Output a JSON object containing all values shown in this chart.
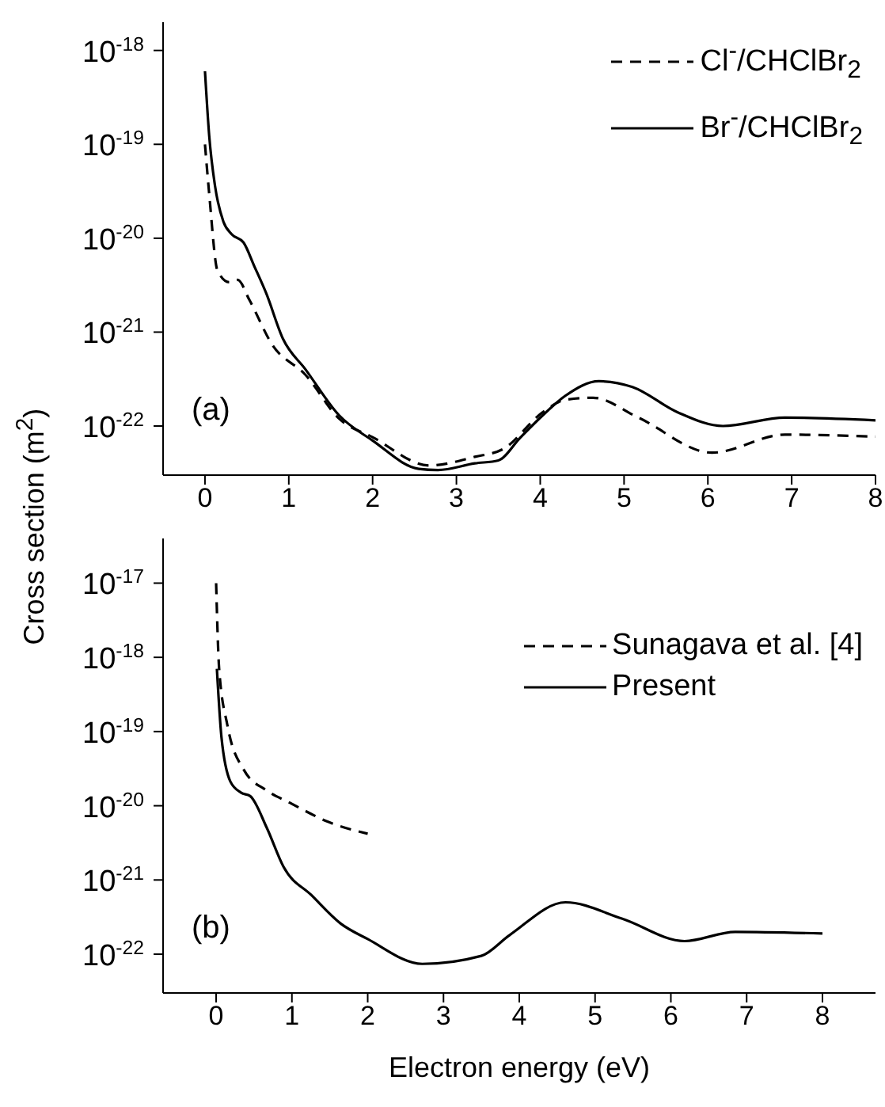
{
  "chart_data": [
    {
      "type": "line",
      "ylabel": "Cross section (m$^{2}$)",
      "log": "y",
      "legend": "top right",
      "annotations": [
        "(a)"
      ],
      "xlim": [
        -0.5,
        8
      ],
      "xticks": [
        0,
        1,
        2,
        3,
        4,
        5,
        6,
        7,
        8
      ],
      "ylim": [
        3e-23,
        2e-18
      ],
      "yticks": [
        {
          "value": 1e-22,
          "label": "10$^{-22}$"
        },
        {
          "value": 1e-21,
          "label": "10$^{-21}$"
        },
        {
          "value": 1e-20,
          "label": "10$^{-20}$"
        },
        {
          "value": 1e-19,
          "label": "10$^{-19}$"
        },
        {
          "value": 1e-18,
          "label": "10$^{-18}$"
        }
      ],
      "series": [
        {
          "name": "Cl$^{-}$/CHClBr$_{2}$",
          "color": "#000000",
          "line_style": "dashed",
          "x": [
            0,
            0.05,
            0.15,
            0.29,
            0.39,
            0.53,
            0.8,
            1.2,
            1.6,
            2.0,
            2.68,
            3.22,
            3.56,
            4.03,
            4.3,
            4.63,
            5.17,
            6.05,
            6.92,
            8
          ],
          "values": [
            1e-19,
            3e-20,
            4.5e-21,
            3.4e-21,
            3.6e-21,
            2.2e-21,
            7.4e-22,
            3.5e-22,
            1.2e-22,
            7.6e-23,
            3.8e-23,
            4.7e-23,
            5.7e-23,
            1.4e-22,
            1.9e-22,
            2e-22,
            1.23e-22,
            5.2e-23,
            8.1e-23,
            7.7e-23
          ]
        },
        {
          "name": "Br$^{-}$/CHClBr$_{2}$",
          "color": "#000000",
          "line_style": "solid",
          "x": [
            0,
            0.05,
            0.12,
            0.22,
            0.32,
            0.46,
            0.59,
            0.73,
            0.93,
            1.2,
            1.6,
            2.0,
            2.55,
            2.78,
            3.22,
            3.5,
            3.76,
            4.03,
            4.3,
            4.7,
            5.1,
            5.64,
            6.18,
            6.92,
            8
          ],
          "values": [
            6e-19,
            1.25e-19,
            3.6e-20,
            1.5e-20,
            1.1e-20,
            9e-21,
            5e-21,
            2.6e-21,
            8.5e-22,
            4e-22,
            1.3e-22,
            7e-23,
            3.5e-23,
            3.4e-23,
            4e-23,
            4.3e-23,
            7.5e-23,
            1.3e-22,
            2.1e-22,
            3e-22,
            2.6e-22,
            1.4e-22,
            1e-22,
            1.23e-22,
            1.15e-22
          ]
        }
      ]
    },
    {
      "type": "line",
      "xlabel": "Electron energy (eV)",
      "log": "y",
      "legend": "right",
      "annotations": [
        "(b)"
      ],
      "xlim": [
        -0.7,
        8.7
      ],
      "xticks": [
        0,
        1,
        2,
        3,
        4,
        5,
        6,
        7,
        8
      ],
      "ylim": [
        3e-23,
        4e-17
      ],
      "yticks": [
        {
          "value": 1e-22,
          "label": "10$^{-22}$"
        },
        {
          "value": 1e-21,
          "label": "10$^{-21}$"
        },
        {
          "value": 1e-20,
          "label": "10$^{-20}$"
        },
        {
          "value": 1e-19,
          "label": "10$^{-19}$"
        },
        {
          "value": 1e-18,
          "label": "10$^{-18}$"
        },
        {
          "value": 1e-17,
          "label": "10$^{-17}$"
        }
      ],
      "series": [
        {
          "name": "Sunagava et al. [4]",
          "color": "#000000",
          "line_style": "dashed",
          "x": [
            0,
            0.04,
            0.15,
            0.37,
            0.67,
            0.97,
            1.49,
            2.0
          ],
          "values": [
            1e-17,
            7e-19,
            1.2e-19,
            3e-20,
            1.6e-20,
            1.1e-20,
            6e-21,
            4.2e-21
          ]
        },
        {
          "name": "Present",
          "color": "#000000",
          "line_style": "solid",
          "x": [
            0.01,
            0.07,
            0.19,
            0.33,
            0.45,
            0.67,
            0.89,
            1.26,
            1.64,
            2.0,
            2.72,
            3.5,
            3.87,
            4.61,
            5.36,
            6.18,
            6.85,
            8
          ],
          "values": [
            7e-19,
            8.5e-20,
            2.1e-20,
            1.5e-20,
            1.35e-20,
            5e-21,
            1.5e-21,
            6.2e-22,
            2.6e-22,
            1.6e-22,
            7.4e-23,
            9.5e-23,
            1.8e-22,
            5e-22,
            3e-22,
            1.5e-22,
            2e-22,
            1.9e-22
          ]
        }
      ]
    }
  ]
}
